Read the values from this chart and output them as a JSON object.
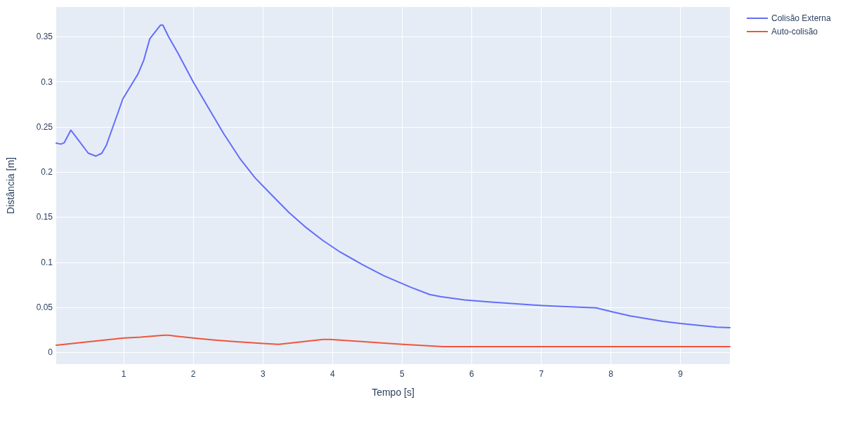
{
  "chart_data": {
    "type": "line",
    "xlabel": "Tempo [s]",
    "ylabel": "Distância [m]",
    "xlim": [
      0.03,
      9.71
    ],
    "xticks": [
      1,
      2,
      3,
      4,
      5,
      6,
      7,
      8,
      9
    ],
    "ylim": [
      -0.013,
      0.383
    ],
    "yticks": [
      0,
      0.05,
      0.1,
      0.15,
      0.2,
      0.25,
      0.3,
      0.35
    ],
    "grid": true,
    "legend": "top right",
    "marker": "none",
    "line_style": "solid",
    "series": [
      {
        "name": "Colisão Externa",
        "color": "#636efa",
        "x": [
          0.03,
          0.1,
          0.145,
          0.24,
          0.364,
          0.49,
          0.6,
          0.684,
          0.751,
          0.835,
          0.919,
          0.987,
          1.065,
          1.156,
          1.206,
          1.29,
          1.374,
          1.53,
          1.563,
          1.643,
          1.778,
          2.0,
          2.216,
          2.435,
          2.677,
          2.891,
          3.135,
          3.376,
          3.628,
          3.862,
          4.114,
          4.444,
          4.736,
          5.124,
          5.396,
          5.552,
          5.901,
          6.278,
          6.424,
          7.017,
          7.3,
          7.788,
          8.024,
          8.277,
          8.748,
          9.02,
          9.522,
          9.71
        ],
        "values": [
          0.232,
          0.231,
          0.2325,
          0.2465,
          0.234,
          0.221,
          0.2177,
          0.2208,
          0.2298,
          0.248,
          0.2661,
          0.2811,
          0.291,
          0.3024,
          0.3088,
          0.3244,
          0.3477,
          0.363,
          0.363,
          0.3503,
          0.332,
          0.2998,
          0.2713,
          0.2428,
          0.2142,
          0.1933,
          0.1739,
          0.155,
          0.138,
          0.1241,
          0.1111,
          0.0968,
          0.0851,
          0.0723,
          0.0642,
          0.0618,
          0.0582,
          0.0558,
          0.055,
          0.052,
          0.051,
          0.0495,
          0.045,
          0.0405,
          0.0345,
          0.032,
          0.028,
          0.0275
        ]
      },
      {
        "name": "Auto-colisão",
        "color": "#ef553b",
        "x": [
          0.03,
          1.0,
          1.24,
          1.576,
          1.643,
          2.0,
          2.317,
          2.586,
          3.0,
          3.226,
          3.866,
          3.967,
          4.741,
          5.01,
          5.583,
          9.71
        ],
        "values": [
          0.008,
          0.016,
          0.017,
          0.019,
          0.019,
          0.016,
          0.0137,
          0.012,
          0.01,
          0.009,
          0.0145,
          0.0145,
          0.0104,
          0.009,
          0.0065,
          0.0065
        ]
      }
    ]
  }
}
